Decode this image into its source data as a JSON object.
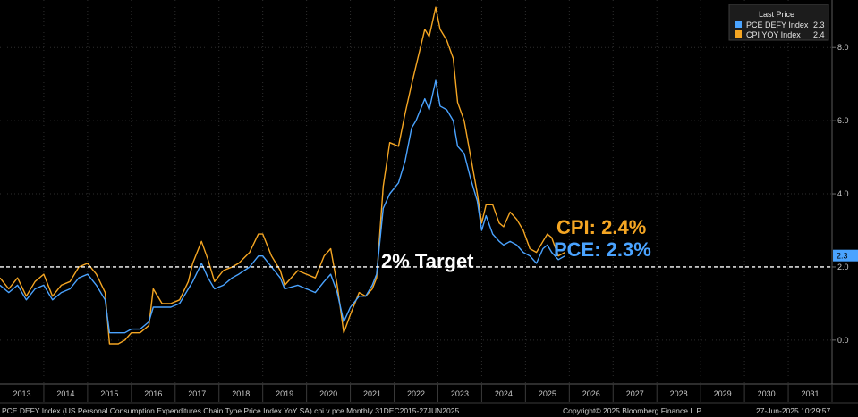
{
  "chart_data": {
    "type": "line",
    "legend": {
      "title": "Last Price",
      "placement": "top-right",
      "entries": [
        {
          "label": "PCE DEFY Index",
          "value": "2.3",
          "color": "#4aa3ff"
        },
        {
          "label": "CPI YOY Index",
          "value": "2.4",
          "color": "#f5a623"
        }
      ]
    },
    "x_range": [
      2012.5,
      2031.5
    ],
    "ylim": [
      -1.2,
      9.3
    ],
    "y_ticks": [
      "0.0",
      "2.0",
      "4.0",
      "6.0",
      "8.0"
    ],
    "x_ticks": [
      "2013",
      "2014",
      "2015",
      "2016",
      "2017",
      "2018",
      "2019",
      "2020",
      "2021",
      "2022",
      "2023",
      "2024",
      "2025",
      "2026",
      "2027",
      "2028",
      "2029",
      "2030",
      "2031"
    ],
    "grid": true,
    "reference_line": {
      "value": 2.0,
      "label": "2% Target",
      "style": "dashed",
      "color": "#ffffff"
    },
    "last_value_tag": {
      "value": "2.3",
      "color": "#4aa3ff"
    },
    "annotations": [
      {
        "text": "CPI: 2.4%",
        "color": "#f5a623"
      },
      {
        "text": "PCE: 2.3%",
        "color": "#4aa3ff"
      }
    ],
    "series": [
      {
        "name": "CPI YOY Index",
        "color": "#f5a623",
        "points": [
          [
            2012.5,
            1.7
          ],
          [
            2012.7,
            1.4
          ],
          [
            2012.9,
            1.7
          ],
          [
            2013.1,
            1.2
          ],
          [
            2013.3,
            1.6
          ],
          [
            2013.5,
            1.8
          ],
          [
            2013.7,
            1.2
          ],
          [
            2013.9,
            1.5
          ],
          [
            2014.1,
            1.6
          ],
          [
            2014.3,
            2.0
          ],
          [
            2014.5,
            2.1
          ],
          [
            2014.7,
            1.8
          ],
          [
            2014.9,
            1.3
          ],
          [
            2015.0,
            -0.1
          ],
          [
            2015.2,
            -0.1
          ],
          [
            2015.35,
            0.0
          ],
          [
            2015.5,
            0.2
          ],
          [
            2015.7,
            0.2
          ],
          [
            2015.9,
            0.4
          ],
          [
            2016.0,
            1.4
          ],
          [
            2016.2,
            1.0
          ],
          [
            2016.4,
            1.0
          ],
          [
            2016.6,
            1.1
          ],
          [
            2016.8,
            1.6
          ],
          [
            2016.9,
            2.1
          ],
          [
            2017.1,
            2.7
          ],
          [
            2017.25,
            2.2
          ],
          [
            2017.4,
            1.6
          ],
          [
            2017.6,
            1.9
          ],
          [
            2017.8,
            2.0
          ],
          [
            2017.95,
            2.1
          ],
          [
            2018.2,
            2.4
          ],
          [
            2018.4,
            2.9
          ],
          [
            2018.5,
            2.9
          ],
          [
            2018.7,
            2.3
          ],
          [
            2018.9,
            1.9
          ],
          [
            2019.0,
            1.5
          ],
          [
            2019.3,
            1.9
          ],
          [
            2019.5,
            1.8
          ],
          [
            2019.7,
            1.7
          ],
          [
            2019.9,
            2.3
          ],
          [
            2020.05,
            2.5
          ],
          [
            2020.2,
            1.5
          ],
          [
            2020.35,
            0.2
          ],
          [
            2020.5,
            0.7
          ],
          [
            2020.7,
            1.3
          ],
          [
            2020.85,
            1.2
          ],
          [
            2021.0,
            1.4
          ],
          [
            2021.1,
            1.7
          ],
          [
            2021.25,
            4.2
          ],
          [
            2021.4,
            5.4
          ],
          [
            2021.6,
            5.3
          ],
          [
            2021.75,
            6.2
          ],
          [
            2021.9,
            7.0
          ],
          [
            2022.0,
            7.5
          ],
          [
            2022.2,
            8.5
          ],
          [
            2022.3,
            8.3
          ],
          [
            2022.45,
            9.1
          ],
          [
            2022.55,
            8.5
          ],
          [
            2022.7,
            8.2
          ],
          [
            2022.85,
            7.7
          ],
          [
            2022.95,
            6.5
          ],
          [
            2023.1,
            6.0
          ],
          [
            2023.25,
            5.0
          ],
          [
            2023.4,
            4.0
          ],
          [
            2023.5,
            3.2
          ],
          [
            2023.6,
            3.7
          ],
          [
            2023.75,
            3.7
          ],
          [
            2023.9,
            3.2
          ],
          [
            2024.0,
            3.1
          ],
          [
            2024.15,
            3.5
          ],
          [
            2024.3,
            3.3
          ],
          [
            2024.45,
            3.0
          ],
          [
            2024.6,
            2.5
          ],
          [
            2024.75,
            2.4
          ],
          [
            2024.9,
            2.7
          ],
          [
            2025.0,
            2.9
          ],
          [
            2025.1,
            2.8
          ],
          [
            2025.25,
            2.3
          ],
          [
            2025.4,
            2.4
          ]
        ]
      },
      {
        "name": "PCE DEFY Index",
        "color": "#4aa3ff",
        "points": [
          [
            2012.5,
            1.5
          ],
          [
            2012.7,
            1.3
          ],
          [
            2012.9,
            1.5
          ],
          [
            2013.1,
            1.1
          ],
          [
            2013.3,
            1.4
          ],
          [
            2013.5,
            1.5
          ],
          [
            2013.7,
            1.1
          ],
          [
            2013.9,
            1.3
          ],
          [
            2014.1,
            1.4
          ],
          [
            2014.3,
            1.7
          ],
          [
            2014.5,
            1.8
          ],
          [
            2014.7,
            1.5
          ],
          [
            2014.9,
            1.1
          ],
          [
            2015.0,
            0.2
          ],
          [
            2015.2,
            0.2
          ],
          [
            2015.35,
            0.2
          ],
          [
            2015.5,
            0.3
          ],
          [
            2015.7,
            0.3
          ],
          [
            2015.9,
            0.5
          ],
          [
            2016.0,
            0.9
          ],
          [
            2016.2,
            0.9
          ],
          [
            2016.4,
            0.9
          ],
          [
            2016.6,
            1.0
          ],
          [
            2016.8,
            1.4
          ],
          [
            2016.9,
            1.6
          ],
          [
            2017.1,
            2.1
          ],
          [
            2017.25,
            1.7
          ],
          [
            2017.4,
            1.4
          ],
          [
            2017.6,
            1.5
          ],
          [
            2017.8,
            1.7
          ],
          [
            2017.95,
            1.8
          ],
          [
            2018.2,
            2.0
          ],
          [
            2018.4,
            2.3
          ],
          [
            2018.5,
            2.3
          ],
          [
            2018.7,
            2.0
          ],
          [
            2018.9,
            1.7
          ],
          [
            2019.0,
            1.4
          ],
          [
            2019.3,
            1.5
          ],
          [
            2019.5,
            1.4
          ],
          [
            2019.7,
            1.3
          ],
          [
            2019.9,
            1.6
          ],
          [
            2020.05,
            1.8
          ],
          [
            2020.2,
            1.3
          ],
          [
            2020.35,
            0.5
          ],
          [
            2020.5,
            0.9
          ],
          [
            2020.7,
            1.2
          ],
          [
            2020.85,
            1.2
          ],
          [
            2021.0,
            1.5
          ],
          [
            2021.1,
            1.8
          ],
          [
            2021.25,
            3.6
          ],
          [
            2021.4,
            4.0
          ],
          [
            2021.6,
            4.3
          ],
          [
            2021.75,
            4.9
          ],
          [
            2021.9,
            5.8
          ],
          [
            2022.0,
            6.0
          ],
          [
            2022.2,
            6.6
          ],
          [
            2022.3,
            6.3
          ],
          [
            2022.45,
            7.1
          ],
          [
            2022.55,
            6.4
          ],
          [
            2022.7,
            6.3
          ],
          [
            2022.85,
            6.0
          ],
          [
            2022.95,
            5.3
          ],
          [
            2023.1,
            5.1
          ],
          [
            2023.25,
            4.4
          ],
          [
            2023.4,
            3.8
          ],
          [
            2023.5,
            3.0
          ],
          [
            2023.6,
            3.4
          ],
          [
            2023.75,
            2.9
          ],
          [
            2023.9,
            2.7
          ],
          [
            2024.0,
            2.6
          ],
          [
            2024.15,
            2.7
          ],
          [
            2024.3,
            2.6
          ],
          [
            2024.45,
            2.4
          ],
          [
            2024.6,
            2.3
          ],
          [
            2024.75,
            2.1
          ],
          [
            2024.9,
            2.5
          ],
          [
            2025.0,
            2.6
          ],
          [
            2025.1,
            2.4
          ],
          [
            2025.25,
            2.2
          ],
          [
            2025.4,
            2.3
          ]
        ]
      }
    ]
  },
  "footer": {
    "description": "PCE DEFY Index (US Personal Consumption Expenditures Chain Type Price Index YoY SA) cpi v pce  Monthly 31DEC2015-27JUN2025",
    "copyright": "Copyright© 2025 Bloomberg Finance L.P.",
    "timestamp": "27-Jun-2025 10:29:57"
  }
}
